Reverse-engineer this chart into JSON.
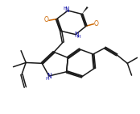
{
  "bg_color": "#ffffff",
  "line_color": "#1a1a1a",
  "nh_color": "#1a1aaa",
  "o_color": "#cc6600",
  "lw": 1.1,
  "figsize": [
    1.74,
    1.41
  ],
  "dpi": 100,
  "xlim": [
    0,
    10
  ],
  "ylim": [
    0,
    8
  ]
}
